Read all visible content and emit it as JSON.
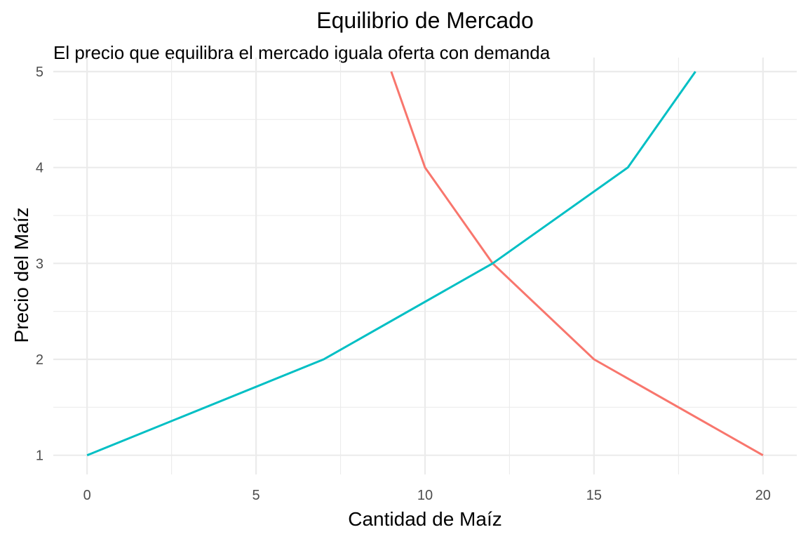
{
  "chart_data": {
    "type": "line",
    "title": "Equilibrio de Mercado",
    "subtitle": "El precio que equilibra el mercado iguala oferta con demanda",
    "xlabel": "Cantidad de Maíz",
    "ylabel": "Precio del Maíz",
    "xlim": [
      -1,
      21
    ],
    "ylim": [
      0.8,
      5
    ],
    "x_ticks": [
      0,
      5,
      10,
      15,
      20
    ],
    "y_ticks": [
      1,
      2,
      3,
      4,
      5
    ],
    "x_tick_labels": [
      "0",
      "5",
      "10",
      "15",
      "20"
    ],
    "y_tick_labels": [
      "1",
      "2",
      "3",
      "4",
      "5"
    ],
    "grid": true,
    "legend": "none",
    "series": [
      {
        "color": "#F8766D",
        "points": [
          {
            "x": 9,
            "y": 5
          },
          {
            "x": 10,
            "y": 4
          },
          {
            "x": 12,
            "y": 3
          },
          {
            "x": 15,
            "y": 2
          },
          {
            "x": 20,
            "y": 1
          }
        ]
      },
      {
        "color": "#00BFC4",
        "points": [
          {
            "x": 0,
            "y": 1
          },
          {
            "x": 7,
            "y": 2
          },
          {
            "x": 12,
            "y": 3
          },
          {
            "x": 16,
            "y": 4
          },
          {
            "x": 18,
            "y": 5
          }
        ]
      }
    ]
  }
}
